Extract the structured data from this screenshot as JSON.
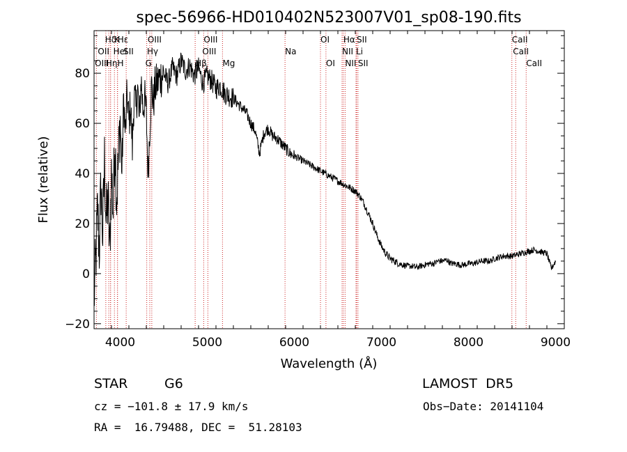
{
  "chart_data": {
    "type": "line",
    "title": "spec-56966-HD010402N523007V01_sp08-190.fits",
    "xlabel": "Wavelength (Å)",
    "ylabel": "Flux (relative)",
    "xlim": [
      3700,
      9100
    ],
    "ylim": [
      -22,
      97
    ],
    "x_ticks": [
      4000,
      5000,
      6000,
      7000,
      8000,
      9000
    ],
    "y_ticks": [
      -20,
      0,
      20,
      40,
      60,
      80
    ],
    "grid": false,
    "series": [
      {
        "x": [
          3700,
          3720,
          3740,
          3760,
          3780,
          3800,
          3820,
          3840,
          3860,
          3880,
          3900,
          3920,
          3940,
          3960,
          3980,
          4000,
          4020,
          4040,
          4060,
          4080,
          4100,
          4120,
          4140,
          4160,
          4180,
          4200,
          4220,
          4240,
          4260,
          4280,
          4300,
          4320,
          4340,
          4360,
          4380,
          4400,
          4450,
          4500,
          4550,
          4600,
          4650,
          4700,
          4750,
          4800,
          4850,
          4900,
          4950,
          5000,
          5050,
          5100,
          5150,
          5200,
          5250,
          5300,
          5350,
          5400,
          5450,
          5500,
          5550,
          5600,
          5650,
          5700,
          5750,
          5800,
          5850,
          5900,
          5950,
          6000,
          6050,
          6100,
          6150,
          6200,
          6250,
          6300,
          6350,
          6400,
          6450,
          6500,
          6550,
          6600,
          6650,
          6700,
          6750,
          6800,
          6850,
          6900,
          6950,
          7000,
          7050,
          7100,
          7150,
          7200,
          7250,
          7300,
          7350,
          7400,
          7450,
          7500,
          7550,
          7600,
          7650,
          7700,
          7750,
          7800,
          7850,
          7900,
          7950,
          8000,
          8050,
          8100,
          8150,
          8200,
          8250,
          8300,
          8350,
          8400,
          8450,
          8500,
          8550,
          8600,
          8650,
          8700,
          8750,
          8800,
          8850,
          8900,
          8950,
          9000
        ],
        "y": [
          -10,
          5,
          25,
          10,
          35,
          15,
          45,
          20,
          30,
          8,
          40,
          25,
          55,
          30,
          45,
          62,
          40,
          70,
          55,
          72,
          60,
          68,
          50,
          72,
          65,
          75,
          60,
          78,
          66,
          70,
          64,
          40,
          58,
          75,
          68,
          74,
          78,
          80,
          76,
          82,
          79,
          85,
          81,
          83,
          79,
          82,
          76,
          79,
          77,
          74,
          75,
          72,
          71,
          70,
          68,
          66,
          64,
          60,
          57,
          48,
          56,
          58,
          55,
          54,
          52,
          50,
          48,
          47,
          46,
          45,
          44,
          43,
          42,
          41,
          40,
          39,
          38,
          37,
          36,
          35,
          34,
          33,
          31,
          28,
          24,
          20,
          15,
          11,
          8,
          6,
          5,
          4,
          3.5,
          3,
          3,
          2.5,
          3,
          3.5,
          4,
          4,
          5,
          5,
          5.5,
          4,
          4,
          3.5,
          3.5,
          4,
          4,
          4.5,
          5,
          5,
          5,
          6,
          6.5,
          7,
          7,
          7,
          7.5,
          8,
          8.5,
          9,
          9.5,
          9,
          8.5,
          8,
          2,
          5
        ]
      }
    ],
    "lines": [
      {
        "name": "Hδ",
        "x": 3890,
        "row": 0,
        "dx": -8
      },
      {
        "name": "K",
        "x": 3934,
        "row": 0,
        "dx": 0
      },
      {
        "name": "Hε",
        "x": 3970,
        "row": 0,
        "dx": 0
      },
      {
        "name": "OII",
        "x": 3727,
        "row": 1,
        "dx": 2
      },
      {
        "name": "HeI",
        "x": 3889,
        "row": 1,
        "dx": 4
      },
      {
        "name": "SII",
        "x": 4069,
        "row": 1,
        "dx": -4
      },
      {
        "name": "OIII",
        "x": 4363,
        "row": 0,
        "dx": -6
      },
      {
        "name": "Hγ",
        "x": 4340,
        "row": 1,
        "dx": -4
      },
      {
        "name": "OIII",
        "x": 3869,
        "row": 2,
        "dx": -20
      },
      {
        "name": "Hη",
        "x": 3835,
        "row": 2,
        "dx": 0
      },
      {
        "name": "H",
        "x": 3968,
        "row": 2,
        "dx": 0
      },
      {
        "name": "G",
        "x": 4305,
        "row": 2,
        "dx": -2
      },
      {
        "name": "OIII",
        "x": 4959,
        "row": 0,
        "dx": 0
      },
      {
        "name": "OIII",
        "x": 5007,
        "row": 1,
        "dx": -8
      },
      {
        "name": "Hβ",
        "x": 4861,
        "row": 2,
        "dx": 0
      },
      {
        "name": "Mg",
        "x": 5175,
        "row": 2,
        "dx": 0
      },
      {
        "name": "Na",
        "x": 5893,
        "row": 1,
        "dx": 0
      },
      {
        "name": "OI",
        "x": 6300,
        "row": 0,
        "dx": 0
      },
      {
        "name": "OI",
        "x": 6363,
        "row": 2,
        "dx": 0
      },
      {
        "name": "Hα",
        "x": 6563,
        "row": 0,
        "dx": 0
      },
      {
        "name": "SII",
        "x": 6716,
        "row": 0,
        "dx": 0
      },
      {
        "name": "NII",
        "x": 6548,
        "row": 1,
        "dx": 0
      },
      {
        "name": "Li",
        "x": 6708,
        "row": 1,
        "dx": 0
      },
      {
        "name": "NII",
        "x": 6583,
        "row": 2,
        "dx": 0
      },
      {
        "name": "SII",
        "x": 6731,
        "row": 2,
        "dx": 0
      },
      {
        "name": "CaII",
        "x": 8498,
        "row": 0,
        "dx": 0
      },
      {
        "name": "CaII",
        "x": 8542,
        "row": 1,
        "dx": -4
      },
      {
        "name": "CaII",
        "x": 8662,
        "row": 2,
        "dx": 0
      }
    ],
    "line_color": "#000000",
    "marker_color": "#cc2222"
  },
  "info": {
    "class": "STAR",
    "subclass": "G6",
    "survey": "LAMOST  DR5",
    "cz": "cz = −101.8 ± 17.9 km/s",
    "obs_date": "Obs−Date: 20141104",
    "coords": "RA =  16.79488, DEC =  51.28103"
  }
}
